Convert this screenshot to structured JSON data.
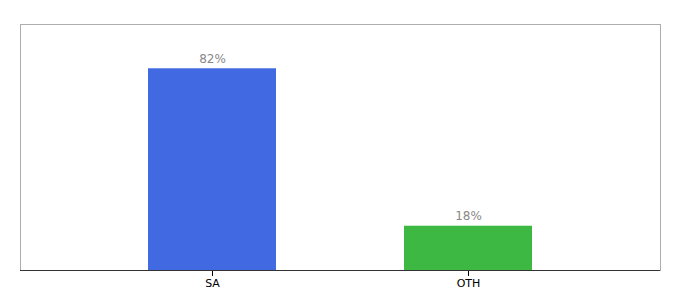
{
  "chart_data": {
    "type": "bar",
    "categories": [
      "SA",
      "OTH"
    ],
    "values": [
      82,
      18
    ],
    "colors": [
      "#4169E1",
      "#3CB843"
    ],
    "value_labels": [
      "82%",
      "18%"
    ],
    "data_labels": true,
    "ylim": [
      0,
      100
    ],
    "tick_labels": "x",
    "grid": false
  }
}
